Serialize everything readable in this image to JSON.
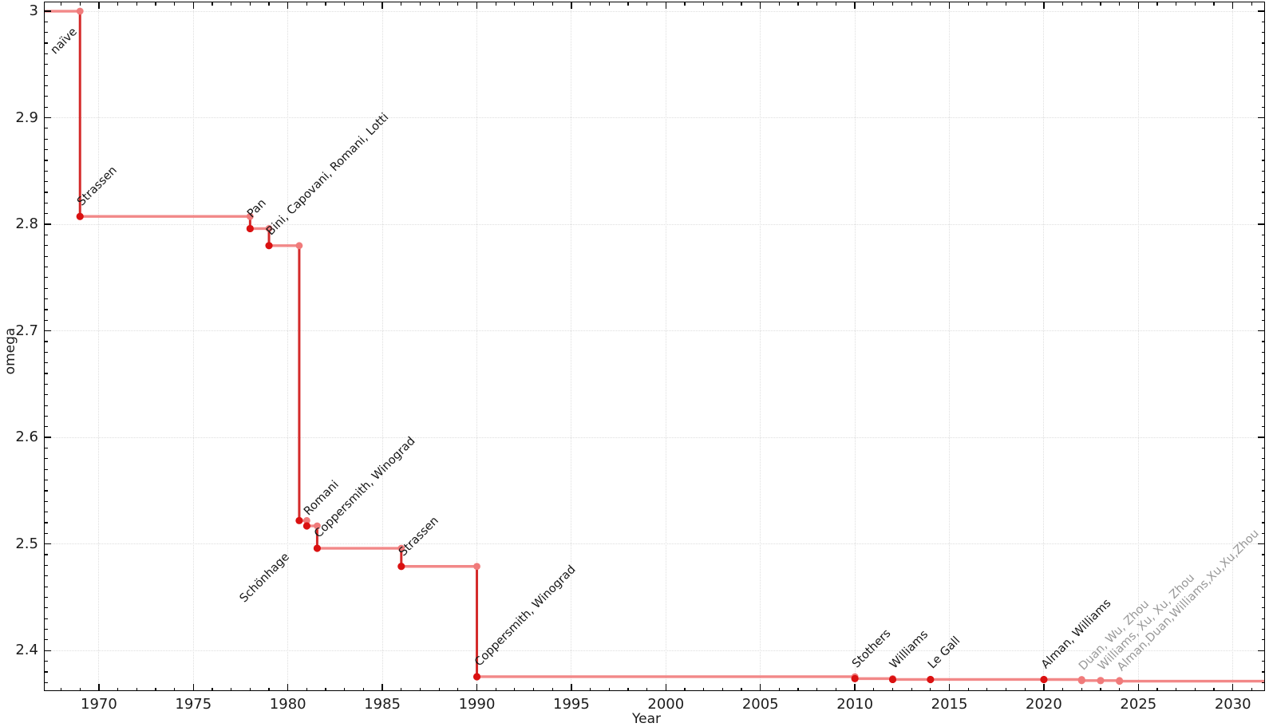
{
  "chart_data": {
    "type": "line",
    "subtype": "step-post",
    "title": "",
    "xlabel": "Year",
    "ylabel": "omega",
    "xlim": [
      1967.09,
      2031.7
    ],
    "ylim": [
      2.362,
      3.009
    ],
    "x_major_ticks": [
      1970,
      1975,
      1980,
      1985,
      1990,
      1995,
      2000,
      2005,
      2010,
      2015,
      2020,
      2025,
      2030
    ],
    "y_major_ticks": [
      2.4,
      2.5,
      2.6,
      2.7,
      2.8,
      2.9,
      3
    ],
    "x_minor_tick_step": 1,
    "y_minor_tick_step": 0.01,
    "grid": "dotted-at-major-ticks",
    "ticks": "inward-mirrored-all-four-sides",
    "legend": "none",
    "initial": {
      "label": "naïve",
      "omega": 3,
      "label_position": "below"
    },
    "events": [
      {
        "label": "Strassen",
        "year": 1969,
        "omega": 2.8074,
        "muted": false,
        "label_position": "above"
      },
      {
        "label": "Pan",
        "year": 1978,
        "omega": 2.796,
        "muted": false,
        "label_position": "above"
      },
      {
        "label": "Bini, Capovani, Romani, Lotti",
        "year": 1979,
        "omega": 2.78,
        "muted": false,
        "label_position": "above"
      },
      {
        "label": "Schönhage",
        "year": 1980.6,
        "omega": 2.522,
        "muted": false,
        "label_position": "below"
      },
      {
        "label": "Romani",
        "year": 1981,
        "omega": 2.517,
        "muted": false,
        "label_position": "above"
      },
      {
        "label": "Coppersmith, Winograd",
        "year": 1981.55,
        "omega": 2.496,
        "muted": false,
        "label_position": "above"
      },
      {
        "label": "Strassen",
        "year": 1986,
        "omega": 2.479,
        "muted": false,
        "label_position": "above"
      },
      {
        "label": "Coppersmith, Winograd",
        "year": 1990,
        "omega": 2.3755,
        "muted": false,
        "label_position": "above"
      },
      {
        "label": "Stothers",
        "year": 2010,
        "omega": 2.3737,
        "muted": false,
        "label_position": "above"
      },
      {
        "label": "Williams",
        "year": 2012,
        "omega": 2.3729,
        "muted": false,
        "label_position": "above"
      },
      {
        "label": "Le Gall",
        "year": 2014,
        "omega": 2.37287,
        "muted": false,
        "label_position": "above"
      },
      {
        "label": "Alman, Williams",
        "year": 2020,
        "omega": 2.37286,
        "muted": false,
        "label_position": "above"
      },
      {
        "label": "Duan, Wu, Zhou",
        "year": 2022,
        "omega": 2.3719,
        "muted": true,
        "label_position": "above"
      },
      {
        "label": "Williams, Xu, Xu, Zhou",
        "year": 2023,
        "omega": 2.37187,
        "muted": true,
        "label_position": "above"
      },
      {
        "label": "Alman,Duan,Williams,Xu,Xu,Zhou",
        "year": 2024,
        "omega": 2.37134,
        "muted": true,
        "label_position": "above"
      }
    ]
  },
  "colors": {
    "step_horizontal": "#f28888",
    "step_vertical": "#d42a2a",
    "point_new": "#da1111",
    "point_old": "#f07b7b",
    "label_text": "#161616",
    "label_muted": "#989898",
    "grid": "#dedede",
    "axis": "#000000",
    "tick_label": "#1c1c1c"
  }
}
